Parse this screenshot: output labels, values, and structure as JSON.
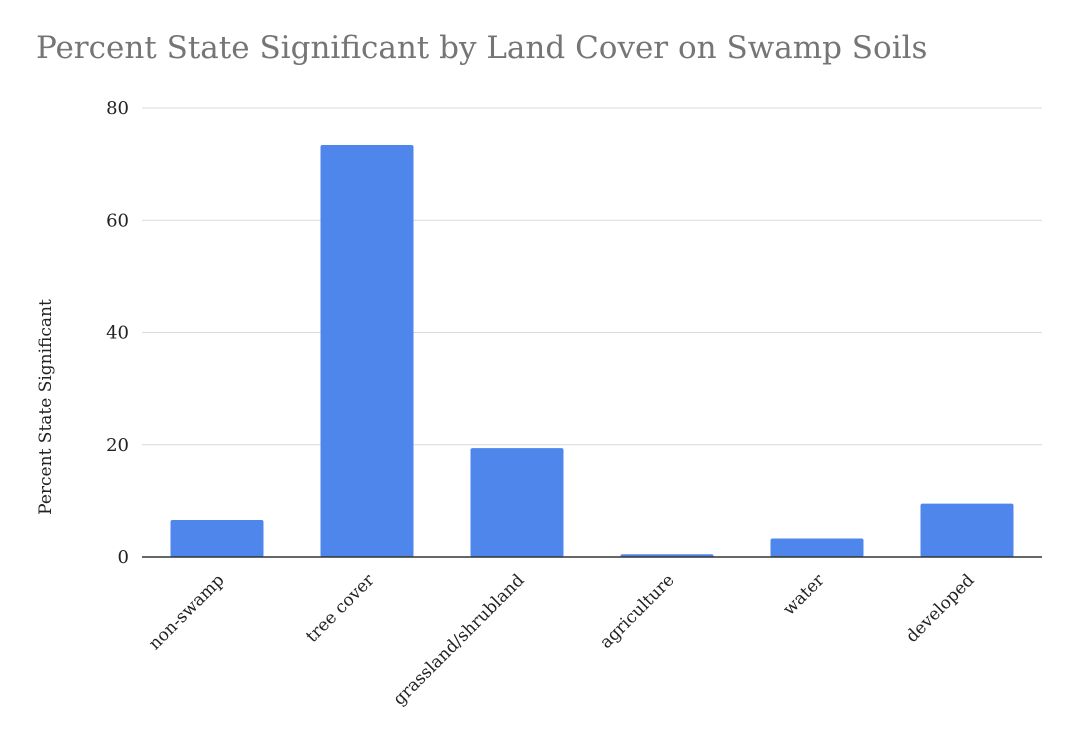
{
  "chart_data": {
    "type": "bar",
    "title": "Percent State Significant by Land Cover on Swamp Soils",
    "xlabel": "",
    "ylabel": "Percent State Significant",
    "categories": [
      "non-swamp",
      "tree cover",
      "grassland/shrubland",
      "agriculture",
      "water",
      "developed"
    ],
    "values": [
      6.6,
      73.4,
      19.4,
      0.5,
      3.3,
      9.5
    ],
    "ylim": [
      0,
      80
    ],
    "yticks": [
      "0",
      "20",
      "40",
      "60",
      "80"
    ],
    "grid": true,
    "legend": "none",
    "bar_color": "#4f86ec"
  }
}
